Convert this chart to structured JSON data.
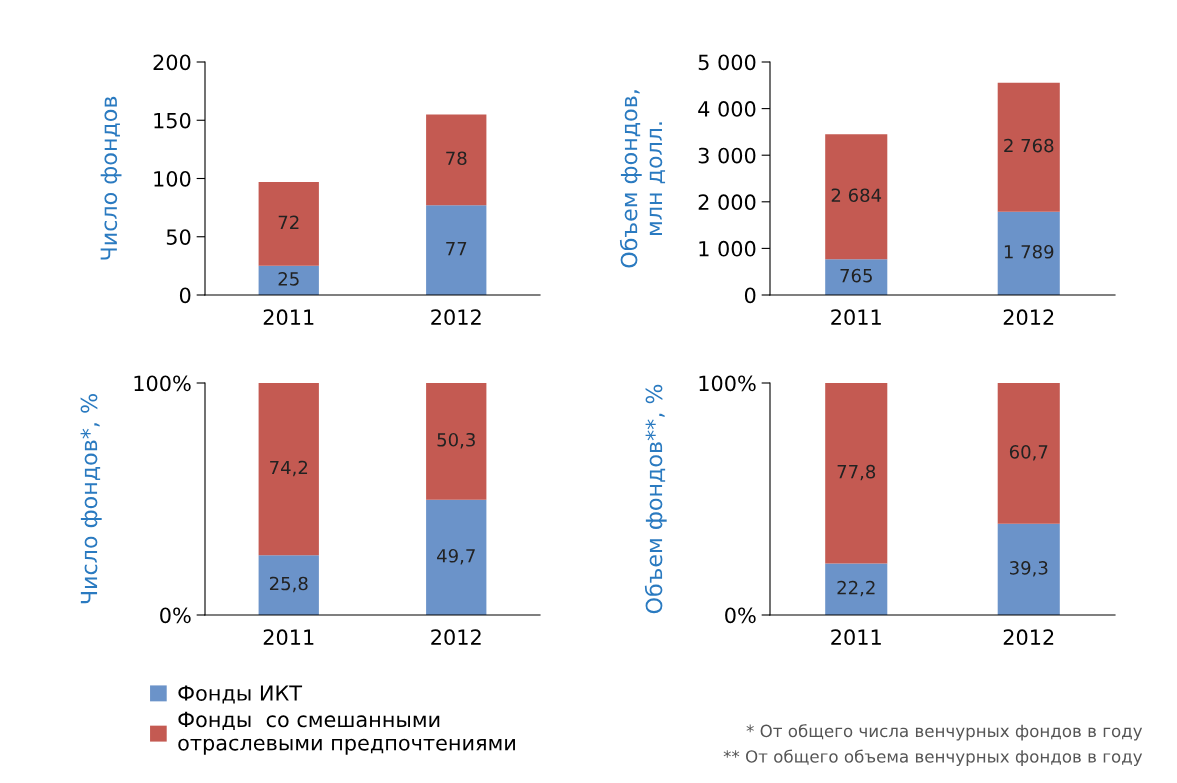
{
  "chart_data": [
    {
      "type": "bar",
      "stacked": true,
      "ylabel": "Число фондов",
      "categories": [
        "2011",
        "2012"
      ],
      "ylim": [
        0,
        200
      ],
      "yticks": [
        0,
        50,
        100,
        150,
        200
      ],
      "series": [
        {
          "color": "#6b93c9",
          "values": [
            25,
            77
          ],
          "value_labels": [
            "25",
            "77"
          ]
        },
        {
          "color": "#c45a52",
          "values": [
            72,
            78
          ],
          "value_labels": [
            "72",
            "78"
          ]
        }
      ]
    },
    {
      "type": "bar",
      "stacked": true,
      "ylabel": "Объем фондов,\nмлн долл.",
      "categories": [
        "2011",
        "2012"
      ],
      "ylim": [
        0,
        5000
      ],
      "yticks": [
        0,
        {
          "value": 1000,
          "label": "1 000"
        },
        {
          "value": 2000,
          "label": "2 000"
        },
        {
          "value": 3000,
          "label": "3 000"
        },
        {
          "value": 4000,
          "label": "4 000"
        },
        {
          "value": 5000,
          "label": "5 000"
        }
      ],
      "series": [
        {
          "color": "#6b93c9",
          "values": [
            765,
            1789
          ],
          "value_labels": [
            "765",
            "1 789"
          ]
        },
        {
          "color": "#c45a52",
          "values": [
            2684,
            2768
          ],
          "value_labels": [
            "2 684",
            "2 768"
          ]
        }
      ]
    },
    {
      "type": "bar",
      "stacked": true,
      "ylabel": "Число фондов*, %",
      "categories": [
        "2011",
        "2012"
      ],
      "ylim": [
        0,
        100
      ],
      "yticks": [
        {
          "value": 0,
          "label": "0%"
        },
        {
          "value": 100,
          "label": "100%"
        }
      ],
      "legend": "bottom",
      "series": [
        {
          "name": "Фонды ИКТ",
          "color": "#6b93c9",
          "values": [
            25.8,
            49.7
          ],
          "value_labels": [
            "25,8",
            "49,7"
          ]
        },
        {
          "name": "Фонды  со смешанными\nотраслевыми предпочтениями",
          "color": "#c45a52",
          "values": [
            74.2,
            50.3
          ],
          "value_labels": [
            "74,2",
            "50,3"
          ]
        }
      ]
    },
    {
      "type": "bar",
      "stacked": true,
      "ylabel": "Объем фондов**, %",
      "categories": [
        "2011",
        "2012"
      ],
      "ylim": [
        0,
        100
      ],
      "yticks": [
        {
          "value": 0,
          "label": "0%"
        },
        {
          "value": 100,
          "label": "100%"
        }
      ],
      "annotations": [
        "* От общего числа венчурных фондов в году",
        "** От общего объема венчурных фондов в году"
      ],
      "series": [
        {
          "color": "#6b93c9",
          "values": [
            22.2,
            39.3
          ],
          "value_labels": [
            "22,2",
            "39,3"
          ]
        },
        {
          "color": "#c45a52",
          "values": [
            77.8,
            60.7
          ],
          "value_labels": [
            "77,8",
            "60,7"
          ]
        }
      ]
    }
  ]
}
